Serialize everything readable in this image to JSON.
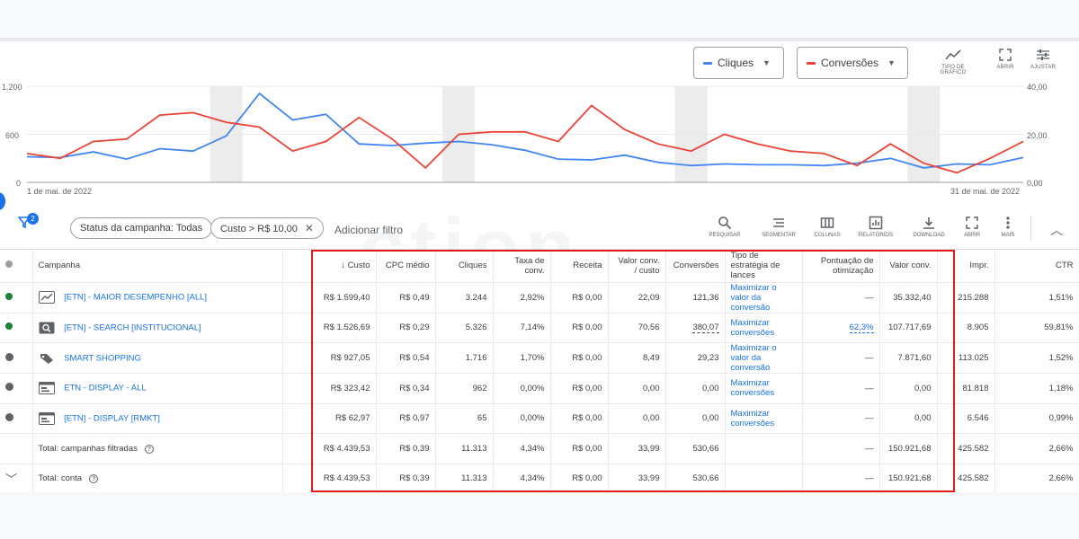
{
  "chart": {
    "metrics": [
      {
        "label": "Cliques",
        "color": "#4285f4"
      },
      {
        "label": "Conversões",
        "color": "#ea4335"
      }
    ],
    "tools": [
      "TIPO DE GRÁFICO",
      "ABRIR",
      "AJUSTAR"
    ],
    "left_axis": [
      "1.200",
      "600",
      "0"
    ],
    "right_axis": [
      "40,00",
      "20,00",
      "0,00"
    ],
    "start_date": "1 de mai. de 2022",
    "end_date": "31 de mai. de 2022"
  },
  "chart_data": {
    "type": "line",
    "x": [
      1,
      2,
      3,
      4,
      5,
      6,
      7,
      8,
      9,
      10,
      11,
      12,
      13,
      14,
      15,
      16,
      17,
      18,
      19,
      20,
      21,
      22,
      23,
      24,
      25,
      26,
      27,
      28,
      29,
      30,
      31
    ],
    "series": [
      {
        "name": "Cliques",
        "axis": "left",
        "color": "#4285f4",
        "values": [
          320,
          310,
          380,
          290,
          420,
          390,
          580,
          1110,
          780,
          850,
          480,
          460,
          490,
          510,
          470,
          400,
          290,
          280,
          340,
          250,
          210,
          230,
          220,
          220,
          210,
          240,
          300,
          180,
          230,
          220,
          310
        ]
      },
      {
        "name": "Conversões",
        "axis": "right",
        "color": "#ea4335",
        "values": [
          12,
          10,
          17,
          18,
          28,
          29,
          25,
          23,
          13,
          17,
          27,
          18,
          6,
          20,
          21,
          21,
          17,
          32,
          22,
          16,
          13,
          20,
          16,
          13,
          12,
          7,
          16,
          8,
          4,
          10,
          17
        ]
      }
    ],
    "ylim_left": [
      0,
      1200
    ],
    "ylim_right": [
      0,
      40
    ],
    "xlabel_start": "1 de mai. de 2022",
    "xlabel_end": "31 de mai. de 2022"
  },
  "filters": {
    "badge": "2",
    "chips": [
      "Status da campanha: Todas",
      "Custo > R$ 10,00"
    ],
    "add_filter": "Adicionar filtro"
  },
  "toolbar": [
    "PESQUISAR",
    "SEGMENTAR",
    "COLUNAS",
    "RELATÓRIOS",
    "DOWNLOAD",
    "ABRIR",
    "MAIS"
  ],
  "watermark": "ction",
  "table": {
    "headers": {
      "campaign": "Campanha",
      "cost": "Custo",
      "cpc": "CPC médio",
      "clicks": "Cliques",
      "conv_rate": "Taxa de conv.",
      "revenue": "Receita",
      "value_cost": "Valor conv. / custo",
      "conversions": "Conversões",
      "strategy": "Tipo de estratégia de lances",
      "opt_score": "Pontuação de otimização",
      "conv_value": "Valor conv.",
      "impr": "Impr.",
      "ctr": "CTR"
    },
    "rows": [
      {
        "status": "green",
        "icon": "performance",
        "name": "[ETN] - MAIOR DESEMPENHO [ALL]",
        "cost": "R$ 1.599,40",
        "cpc": "R$ 0,49",
        "clicks": "3.244",
        "conv_rate": "2,92%",
        "revenue": "R$ 0,00",
        "value_cost": "22,09",
        "conversions": "121,36",
        "strategy": "Maximizar o valor da conversão",
        "opt_score": "—",
        "conv_value": "35.332,40",
        "impr": "215.288",
        "ctr": "1,51%"
      },
      {
        "status": "green",
        "icon": "search",
        "name": "[ETN] - SEARCH [INSTITUCIONAL]",
        "cost": "R$ 1.526,69",
        "cpc": "R$ 0,29",
        "clicks": "5.326",
        "conv_rate": "7,14%",
        "revenue": "R$ 0,00",
        "value_cost": "70,56",
        "conversions": "380,07",
        "strategy": "Maximizar conversões",
        "opt_score": "62,3%",
        "conv_value": "107.717,69",
        "impr": "8.905",
        "ctr": "59,81%"
      },
      {
        "status": "paused",
        "icon": "shopping",
        "name": "SMART SHOPPING",
        "cost": "R$ 927,05",
        "cpc": "R$ 0,54",
        "clicks": "1.716",
        "conv_rate": "1,70%",
        "revenue": "R$ 0,00",
        "value_cost": "8,49",
        "conversions": "29,23",
        "strategy": "Maximizar o valor da conversão",
        "opt_score": "—",
        "conv_value": "7.871,60",
        "impr": "113.025",
        "ctr": "1,52%"
      },
      {
        "status": "paused",
        "icon": "display",
        "name": "ETN - DISPLAY - ALL",
        "cost": "R$ 323,42",
        "cpc": "R$ 0,34",
        "clicks": "962",
        "conv_rate": "0,00%",
        "revenue": "R$ 0,00",
        "value_cost": "0,00",
        "conversions": "0,00",
        "strategy": "Maximizar conversões",
        "opt_score": "—",
        "conv_value": "0,00",
        "impr": "81.818",
        "ctr": "1,18%"
      },
      {
        "status": "paused",
        "icon": "display",
        "name": "[ETN] - DISPLAY [RMKT]",
        "cost": "R$ 62,97",
        "cpc": "R$ 0,97",
        "clicks": "65",
        "conv_rate": "0,00%",
        "revenue": "R$ 0,00",
        "value_cost": "0,00",
        "conversions": "0,00",
        "strategy": "Maximizar conversões",
        "opt_score": "—",
        "conv_value": "0,00",
        "impr": "6.546",
        "ctr": "0,99%"
      }
    ],
    "totals": [
      {
        "label": "Total: campanhas filtradas",
        "cost": "R$ 4.439,53",
        "cpc": "R$ 0,39",
        "clicks": "11.313",
        "conv_rate": "4,34%",
        "revenue": "R$ 0,00",
        "value_cost": "33,99",
        "conversions": "530,66",
        "opt_score": "—",
        "conv_value": "150.921,68",
        "impr": "425.582",
        "ctr": "2,66%"
      },
      {
        "label": "Total: conta",
        "cost": "R$ 4.439,53",
        "cpc": "R$ 0,39",
        "clicks": "11.313",
        "conv_rate": "4,34%",
        "revenue": "R$ 0,00",
        "value_cost": "33,99",
        "conversions": "530,66",
        "opt_score": "—",
        "conv_value": "150.921,68",
        "impr": "425.582",
        "ctr": "2,66%"
      }
    ]
  }
}
